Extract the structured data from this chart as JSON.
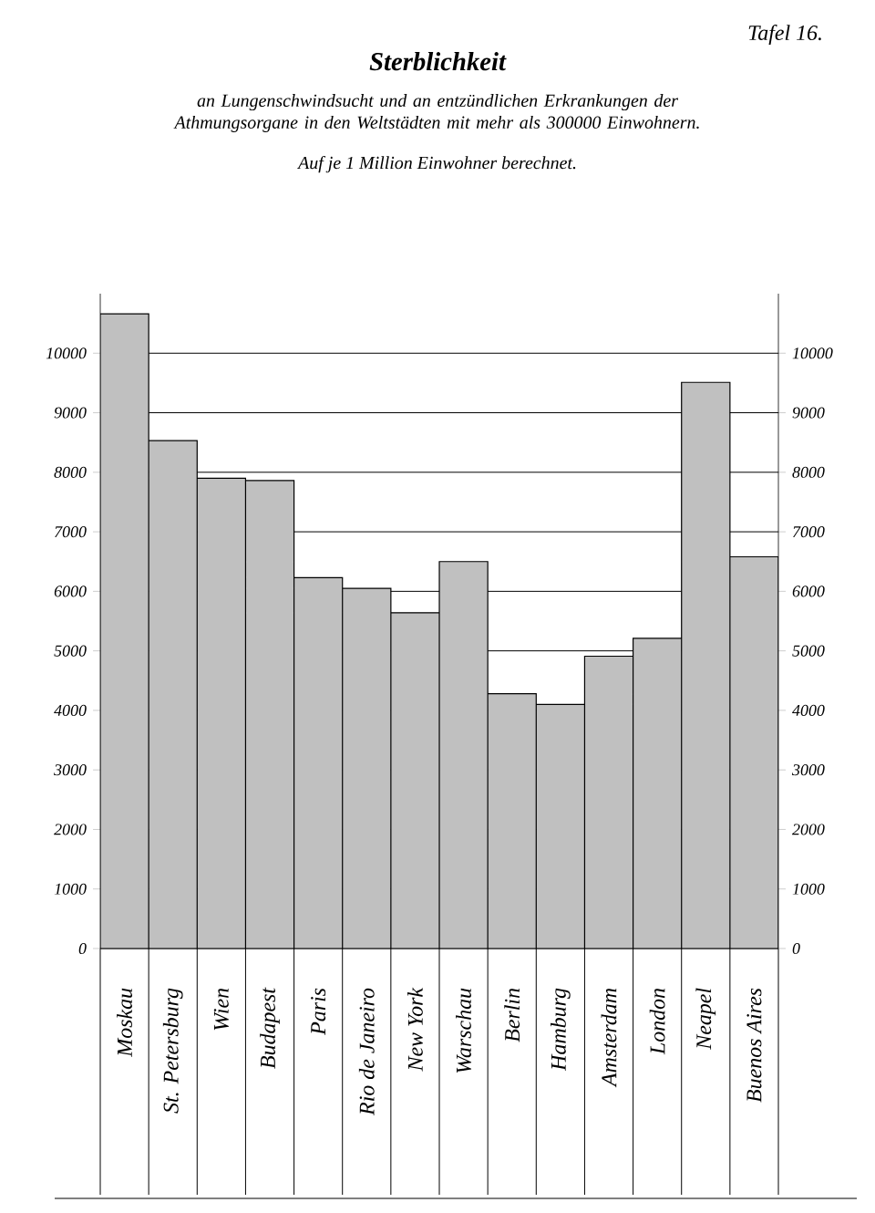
{
  "chart_data": {
    "type": "bar",
    "title": "Sterblichkeit",
    "subtitle": "an Lungenschwindsucht und an entzündlichen Erkrankungen der Athmungsorgane in den Weltstädten mit mehr als 300000 Einwohnern.",
    "annotations": [
      "Tafel 16.",
      "Auf je 1 Million Einwohner berechnet."
    ],
    "categories": [
      "Moskau",
      "St. Petersburg",
      "Wien",
      "Budapest",
      "Paris",
      "Rio de Janeiro",
      "New York",
      "Warschau",
      "Berlin",
      "Hamburg",
      "Amsterdam",
      "London",
      "Neapel",
      "Buenos Aires"
    ],
    "values": [
      10660,
      8530,
      7900,
      7860,
      6230,
      6050,
      5640,
      6500,
      4280,
      4100,
      4910,
      5210,
      9510,
      6580
    ],
    "color": "#c0c0c0",
    "ylim": [
      0,
      11000
    ],
    "yticks": [
      0,
      1000,
      2000,
      3000,
      4000,
      5000,
      6000,
      7000,
      8000,
      9000,
      10000
    ],
    "y2lim": [
      0,
      11000
    ],
    "y2ticks": [
      0,
      1000,
      2000,
      3000,
      4000,
      5000,
      6000,
      7000,
      8000,
      9000,
      10000
    ],
    "grid": "y"
  }
}
